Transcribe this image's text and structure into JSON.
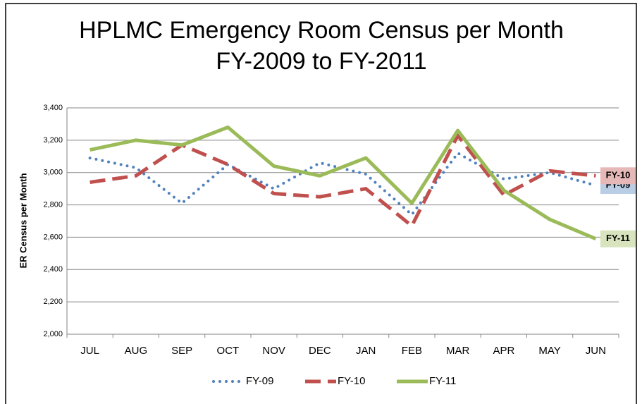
{
  "chart_data": {
    "type": "line",
    "title": "HPLMC Emergency Room Census per Month",
    "subtitle": "FY-2009 to FY-2011",
    "y_label": "ER Census per Month",
    "categories": [
      "JUL",
      "AUG",
      "SEP",
      "OCT",
      "NOV",
      "DEC",
      "JAN",
      "FEB",
      "MAR",
      "APR",
      "MAY",
      "JUN"
    ],
    "series": [
      {
        "name": "FY-09",
        "color": "#4f81bd",
        "style": "dotted",
        "label_background": "#b9cde5",
        "values": [
          3090,
          3030,
          2810,
          3050,
          2900,
          3060,
          2990,
          2740,
          3120,
          2960,
          3000,
          2920
        ]
      },
      {
        "name": "FY-10",
        "color": "#c0504d",
        "style": "dashed",
        "label_background": "#e6b9b8",
        "values": [
          2940,
          2980,
          3170,
          3050,
          2870,
          2850,
          2900,
          2670,
          3230,
          2860,
          3010,
          2980
        ]
      },
      {
        "name": "FY-11",
        "color": "#9bbb59",
        "style": "solid",
        "label_background": "#d7e4bd",
        "values": [
          3140,
          3200,
          3170,
          3280,
          3040,
          2980,
          3090,
          2810,
          3260,
          2890,
          2710,
          2590
        ]
      }
    ],
    "ylim": [
      2000,
      3400
    ],
    "yticks": [
      {
        "value": 2000,
        "label": "2,000"
      },
      {
        "value": 2200,
        "label": "2,200"
      },
      {
        "value": 2400,
        "label": "2,400"
      },
      {
        "value": 2600,
        "label": "2,600"
      },
      {
        "value": 2800,
        "label": "2,800"
      },
      {
        "value": 3000,
        "label": "3,000"
      },
      {
        "value": 3200,
        "label": "3,200"
      },
      {
        "value": 3400,
        "label": "3,400"
      }
    ],
    "grid": true,
    "legend": "bottom"
  }
}
